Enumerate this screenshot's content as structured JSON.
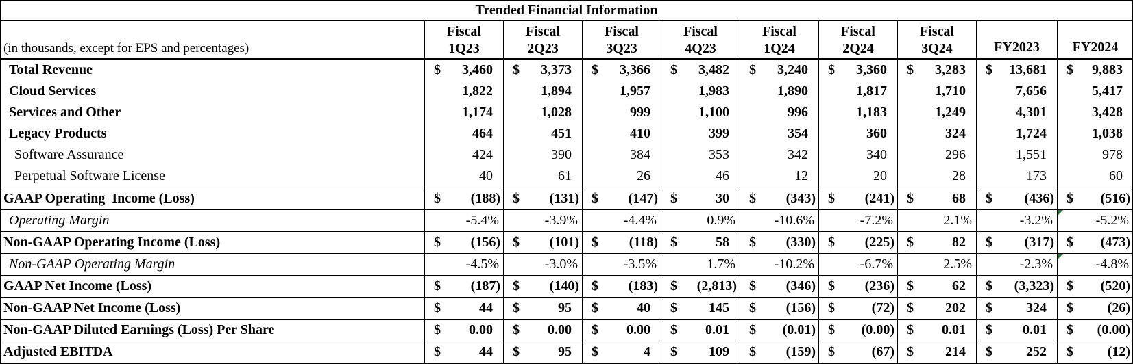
{
  "title": "Trended Financial Information",
  "unit_note": "(in thousands, except for EPS and percentages)",
  "colors": {
    "text": "#000000",
    "border": "#000000",
    "background": "#ffffff",
    "error_flag_green": "#1e7234"
  },
  "column_headers": [
    {
      "top": "Fiscal",
      "bottom": "1Q23"
    },
    {
      "top": "Fiscal",
      "bottom": "2Q23"
    },
    {
      "top": "Fiscal",
      "bottom": "3Q23"
    },
    {
      "top": "Fiscal",
      "bottom": "4Q23"
    },
    {
      "top": "Fiscal",
      "bottom": "1Q24"
    },
    {
      "top": "Fiscal",
      "bottom": "2Q24"
    },
    {
      "top": "Fiscal",
      "bottom": "3Q24"
    },
    {
      "top": "",
      "bottom": "FY2023"
    },
    {
      "top": "",
      "bottom": "FY2024"
    }
  ],
  "rows": [
    {
      "label": "Total Revenue",
      "style": "bold",
      "indent": 1,
      "dollar": true,
      "boxed": false,
      "values": [
        "3,460",
        "3,373",
        "3,366",
        "3,482",
        "3,240",
        "3,360",
        "3,283",
        "13,681",
        "9,883"
      ]
    },
    {
      "label": "Cloud Services",
      "style": "bold",
      "indent": 1,
      "dollar": false,
      "boxed": false,
      "values": [
        "1,822",
        "1,894",
        "1,957",
        "1,983",
        "1,890",
        "1,817",
        "1,710",
        "7,656",
        "5,417"
      ]
    },
    {
      "label": "Services and Other",
      "style": "bold",
      "indent": 1,
      "dollar": false,
      "boxed": false,
      "values": [
        "1,174",
        "1,028",
        "999",
        "1,100",
        "996",
        "1,183",
        "1,249",
        "4,301",
        "3,428"
      ]
    },
    {
      "label": "Legacy Products",
      "style": "bold",
      "indent": 1,
      "dollar": false,
      "boxed": false,
      "values": [
        "464",
        "451",
        "410",
        "399",
        "354",
        "360",
        "324",
        "1,724",
        "1,038"
      ]
    },
    {
      "label": "Software Assurance",
      "style": "plain",
      "indent": 2,
      "dollar": false,
      "boxed": false,
      "values": [
        "424",
        "390",
        "384",
        "353",
        "342",
        "340",
        "296",
        "1,551",
        "978"
      ]
    },
    {
      "label": "Perpetual Software License",
      "style": "plain",
      "indent": 2,
      "dollar": false,
      "boxed": false,
      "values": [
        "40",
        "61",
        "26",
        "46",
        "12",
        "20",
        "28",
        "173",
        "60"
      ]
    },
    {
      "label": "GAAP Operating  Income (Loss)",
      "style": "bold",
      "indent": 0,
      "dollar": true,
      "boxed": true,
      "values": [
        "(188)",
        "(131)",
        "(147)",
        "30",
        "(343)",
        "(241)",
        "68",
        "(436)",
        "(516)"
      ]
    },
    {
      "label": "Operating Margin",
      "style": "italic",
      "indent": 1,
      "dollar": false,
      "boxed": true,
      "percent": true,
      "flags": [
        8
      ],
      "values": [
        "-5.4%",
        "-3.9%",
        "-4.4%",
        "0.9%",
        "-10.6%",
        "-7.2%",
        "2.1%",
        "-3.2%",
        "-5.2%"
      ]
    },
    {
      "label": "Non-GAAP Operating Income (Loss)",
      "style": "bold",
      "indent": 0,
      "dollar": true,
      "boxed": true,
      "values": [
        "(156)",
        "(101)",
        "(118)",
        "58",
        "(330)",
        "(225)",
        "82",
        "(317)",
        "(473)"
      ]
    },
    {
      "label": "Non-GAAP Operating Margin",
      "style": "italic",
      "indent": 1,
      "dollar": false,
      "boxed": true,
      "percent": true,
      "flags": [
        8
      ],
      "values": [
        "-4.5%",
        "-3.0%",
        "-3.5%",
        "1.7%",
        "-10.2%",
        "-6.7%",
        "2.5%",
        "-2.3%",
        "-4.8%"
      ]
    },
    {
      "label": "GAAP Net Income (Loss)",
      "style": "bold",
      "indent": 0,
      "dollar": true,
      "boxed": true,
      "values": [
        "(187)",
        "(140)",
        "(183)",
        "(2,813)",
        "(346)",
        "(236)",
        "62",
        "(3,323)",
        "(520)"
      ]
    },
    {
      "label": "Non-GAAP Net Income (Loss)",
      "style": "bold",
      "indent": 0,
      "dollar": true,
      "boxed": true,
      "values": [
        "44",
        "95",
        "40",
        "145",
        "(156)",
        "(72)",
        "202",
        "324",
        "(26)"
      ]
    },
    {
      "label": "Non-GAAP Diluted Earnings (Loss) Per Share",
      "style": "bold",
      "indent": 0,
      "dollar": true,
      "boxed": true,
      "values": [
        "0.00",
        "0.00",
        "0.00",
        "0.01",
        "(0.01)",
        "(0.00)",
        "0.01",
        "0.01",
        "(0.00)"
      ]
    },
    {
      "label": "Adjusted EBITDA",
      "style": "bold",
      "indent": 0,
      "dollar": true,
      "boxed": true,
      "values": [
        "44",
        "95",
        "4",
        "109",
        "(159)",
        "(67)",
        "214",
        "252",
        "(12)"
      ]
    }
  ]
}
